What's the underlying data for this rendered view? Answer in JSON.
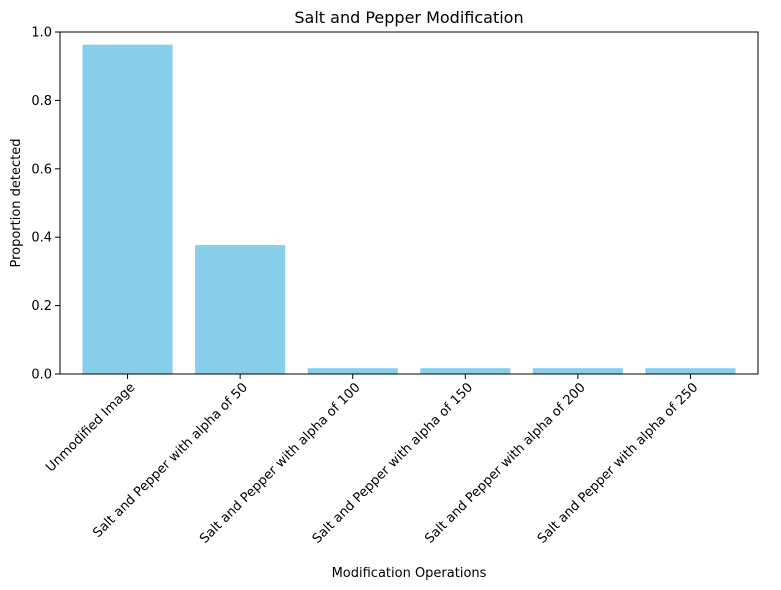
{
  "chart_data": {
    "type": "bar",
    "title": "Salt and Pepper Modification",
    "xlabel": "Modification Operations",
    "ylabel": "Proportion detected",
    "categories": [
      "Unmodified Image",
      "Salt and Pepper with alpha of 50",
      "Salt and Pepper with alpha of 100",
      "Salt and Pepper with alpha of 150",
      "Salt and Pepper with alpha of 200",
      "Salt and Pepper with alpha of 250"
    ],
    "values": [
      0.963,
      0.377,
      0.017,
      0.017,
      0.017,
      0.017
    ],
    "ylim": [
      0,
      1.0
    ],
    "yticks": [
      "0.0",
      "0.2",
      "0.4",
      "0.6",
      "0.8",
      "1.0"
    ],
    "bar_color": "#87ceeb",
    "grid": false,
    "legend": "none"
  }
}
